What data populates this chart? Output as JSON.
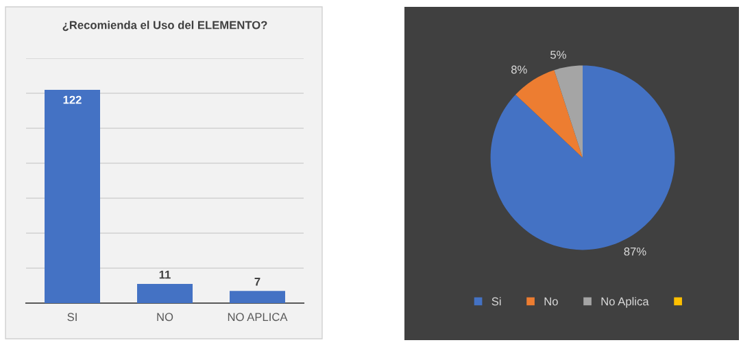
{
  "chart_data": [
    {
      "type": "bar",
      "title": "¿Recomienda el Uso del ELEMENTO?",
      "categories": [
        "SI",
        "NO",
        "NO APLICA"
      ],
      "values": [
        122,
        11,
        7
      ],
      "color": "#4472c4",
      "data_labels": true,
      "ylim": [
        0,
        140
      ],
      "yticks": [
        {
          "value": 0,
          "label": null
        },
        {
          "value": 20,
          "label": null
        },
        {
          "value": 40,
          "label": null
        },
        {
          "value": 60,
          "label": null
        },
        {
          "value": 80,
          "label": null
        },
        {
          "value": 100,
          "label": null
        },
        {
          "value": 120,
          "label": null
        },
        {
          "value": 140,
          "label": null
        }
      ],
      "grid": "y",
      "tick_labels": "x"
    },
    {
      "type": "pie",
      "categories": [
        "Si",
        "No",
        "No Aplica",
        null
      ],
      "values": [
        87,
        8,
        5,
        0
      ],
      "colors": [
        "#4472c4",
        "#ed7d31",
        "#a5a5a5",
        "#ffc000"
      ],
      "value_labels": [
        "87%",
        "8%",
        "5%",
        null
      ],
      "legend": "bottom"
    }
  ]
}
